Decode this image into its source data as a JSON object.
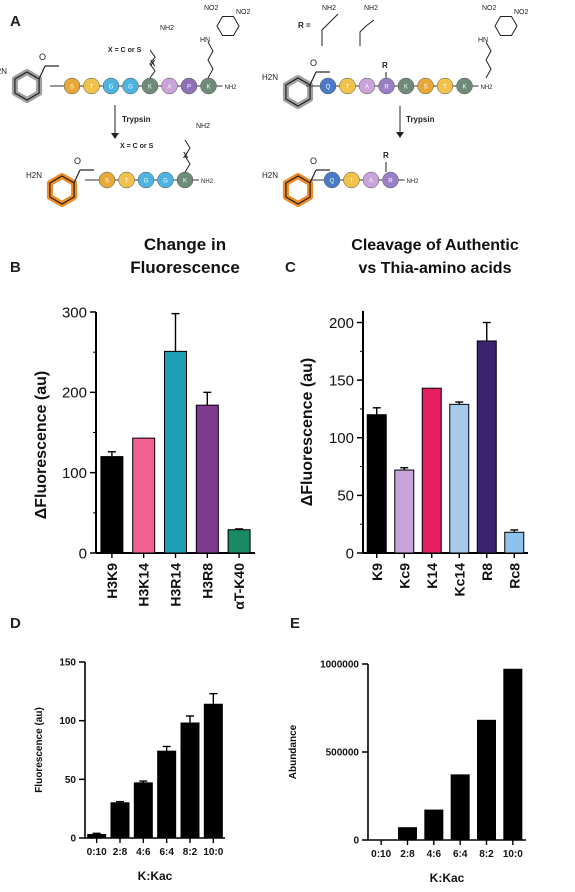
{
  "panels": {
    "A": {
      "letter": "A",
      "x_label": "X = C or S",
      "r_label": "R =",
      "trypsin": "Trypsin",
      "nh2": "NH2",
      "h2n": "H2N",
      "no2": "NO2",
      "hn": "HN",
      "o": "O",
      "r": "R",
      "x": "X",
      "left_peptide": [
        "S",
        "T",
        "G",
        "G",
        "K",
        "A",
        "P",
        "K"
      ],
      "left_product": [
        "S",
        "T",
        "G",
        "G",
        "K"
      ],
      "right_peptide": [
        "Q",
        "T",
        "A",
        "R",
        "K",
        "S",
        "T",
        "K"
      ],
      "right_product": [
        "Q",
        "T",
        "A",
        "R"
      ],
      "residue_colors": {
        "S": "#e8a838",
        "T": "#f0c14b",
        "G": "#4fb3e0",
        "K": "#6e8b7a",
        "A": "#c9a3d9",
        "P": "#8f6fb8",
        "Q": "#4a7ac7",
        "R": "#9b7fc6"
      },
      "colors": {
        "intact_cap": "#a0a0a0",
        "cleaved_cap": "#f08a24"
      }
    }
  },
  "chart_data": [
    {
      "panel": "B",
      "type": "bar",
      "title": [
        "Change in",
        "Fluorescence"
      ],
      "ylabel": "ΔFluorescence (au)",
      "categories": [
        "H3K9",
        "H3K14",
        "H3R14",
        "H3R8",
        "αT-K40"
      ],
      "values": [
        120,
        143,
        251,
        184,
        29
      ],
      "errors": [
        6,
        0,
        47,
        16,
        1
      ],
      "colors": [
        "#000000",
        "#f0618f",
        "#1f9eb3",
        "#7d3a8f",
        "#1a8a63"
      ],
      "ylim": [
        0,
        300
      ],
      "yticks": [
        "0",
        "100",
        "200",
        "300"
      ]
    },
    {
      "panel": "C",
      "type": "bar",
      "title": [
        "Cleavage of Authentic",
        "vs Thia-amino acids"
      ],
      "ylabel": "ΔFluorescence (au)",
      "categories": [
        "K9",
        "Kc9",
        "K14",
        "Kc14",
        "R8",
        "Rc8"
      ],
      "values": [
        120,
        72,
        143,
        129,
        184,
        18
      ],
      "errors": [
        6,
        2,
        0,
        2,
        16,
        2
      ],
      "colors": [
        "#000000",
        "#c9a3d9",
        "#e81e63",
        "#a6c9ec",
        "#3a2470",
        "#8fc2ea"
      ],
      "ylim": [
        0,
        210
      ],
      "yticks": [
        "0",
        "50",
        "100",
        "150",
        "200"
      ]
    },
    {
      "panel": "D",
      "type": "bar",
      "title": "",
      "xlabel": "K:Kac",
      "ylabel": "Fluorescence (au)",
      "categories": [
        "0:10",
        "2:8",
        "4:6",
        "6:4",
        "8:2",
        "10:0"
      ],
      "values": [
        3,
        30,
        47,
        74,
        98,
        114
      ],
      "errors": [
        1,
        1,
        1.5,
        4,
        6,
        9
      ],
      "colors": [
        "#000000"
      ],
      "ylim": [
        0,
        150
      ],
      "yticks": [
        "0",
        "50",
        "100",
        "150"
      ]
    },
    {
      "panel": "E",
      "type": "bar",
      "title": "",
      "xlabel": "K:Kac",
      "ylabel": "Abundance",
      "categories": [
        "0:10",
        "2:8",
        "4:6",
        "6:4",
        "8:2",
        "10:0"
      ],
      "values": [
        0,
        70000,
        170000,
        370000,
        680000,
        970000
      ],
      "errors": [
        0,
        0,
        0,
        0,
        0,
        0
      ],
      "colors": [
        "#000000"
      ],
      "ylim": [
        0,
        1000000
      ],
      "yticks": [
        "0",
        "500000",
        "1000000"
      ]
    }
  ]
}
